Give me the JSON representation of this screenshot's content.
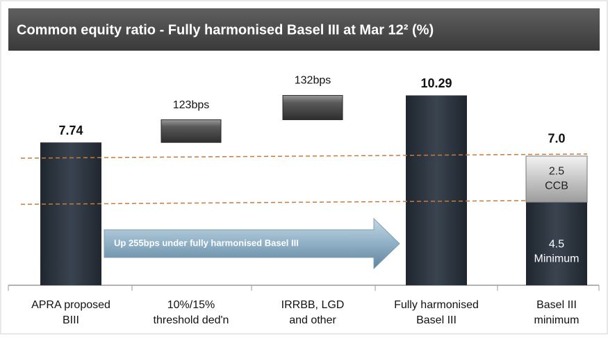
{
  "chart_data": {
    "type": "waterfall",
    "title": "Common equity ratio - Fully harmonised Basel III at Mar 12² (%)",
    "annotation": "Up 255bps under fully harmonised Basel III",
    "ylim": [
      0,
      12
    ],
    "steps": [
      {
        "kind": "total",
        "category": [
          "APRA proposed",
          "BIII"
        ],
        "value": 7.74,
        "label": "7.74"
      },
      {
        "kind": "delta",
        "category": [
          "10%/15%",
          "threshold ded'n"
        ],
        "value": 1.23,
        "label": "123bps"
      },
      {
        "kind": "delta",
        "category": [
          "IRRBB, LGD",
          "and other"
        ],
        "value": 1.32,
        "label": "132bps"
      },
      {
        "kind": "total",
        "category": [
          "Fully harmonised",
          "Basel III"
        ],
        "value": 10.29,
        "label": "10.29"
      },
      {
        "kind": "stack",
        "category": [
          "Basel III",
          "minimum"
        ],
        "value": 7.0,
        "label": "7.0",
        "segments": [
          {
            "value": 4.5,
            "name": "Minimum"
          },
          {
            "value": 2.5,
            "name": "CCB"
          }
        ]
      }
    ]
  }
}
